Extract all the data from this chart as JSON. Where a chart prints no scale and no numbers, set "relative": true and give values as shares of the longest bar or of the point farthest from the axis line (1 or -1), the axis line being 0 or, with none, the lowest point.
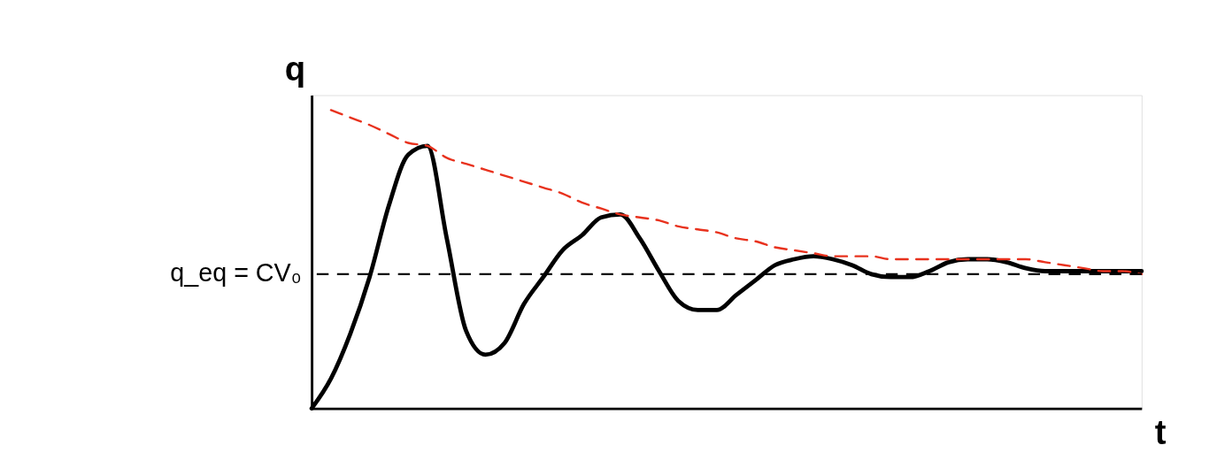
{
  "chart_data": {
    "type": "line",
    "relative": true,
    "xlabel": "t",
    "ylabel": "q",
    "grid": false,
    "categories": [
      null,
      null,
      null,
      null,
      null,
      null,
      null,
      null,
      null,
      null,
      null,
      null,
      null,
      null,
      null,
      null,
      null,
      null,
      null,
      null,
      null,
      null,
      null,
      null,
      null,
      null,
      null,
      null,
      null,
      null,
      null,
      null,
      null,
      null,
      null,
      null,
      null,
      null,
      null,
      null,
      null,
      null,
      null,
      null
    ],
    "series": [
      {
        "color": "#000000",
        "line_style": "solid",
        "values": [
          0,
          0.1,
          0.25,
          0.44,
          0.68,
          0.85,
          0.88,
          0.57,
          0.26,
          0.18,
          0.22,
          0.35,
          0.44,
          0.53,
          0.58,
          0.64,
          0.65,
          0.57,
          0.46,
          0.36,
          0.33,
          0.33,
          0.38,
          0.43,
          0.48,
          0.5,
          0.51,
          0.5,
          0.48,
          0.45,
          0.44,
          0.44,
          0.46,
          0.49,
          0.5,
          0.5,
          0.49,
          0.47,
          0.46,
          0.46,
          0.46,
          0.46,
          0.46,
          0.46
        ]
      },
      {
        "color": "#e8321e",
        "line_style": "dashed",
        "values": [
          null,
          1.0,
          0.975,
          0.95,
          0.92,
          0.89,
          0.88,
          0.84,
          0.82,
          0.8,
          0.78,
          0.76,
          0.74,
          0.72,
          0.69,
          0.67,
          0.65,
          0.64,
          0.63,
          0.61,
          0.6,
          0.59,
          0.57,
          0.56,
          0.54,
          0.53,
          0.52,
          0.51,
          0.51,
          0.51,
          0.5,
          0.5,
          0.5,
          0.5,
          0.5,
          0.5,
          0.5,
          0.5,
          0.49,
          0.48,
          0.47,
          0.46,
          0.46,
          0.45
        ]
      }
    ],
    "ref_lines": [
      {
        "axis": "y",
        "value": 0.45,
        "label": "q_eq = CV₀",
        "color": "#000000",
        "line_style": "dashed"
      }
    ]
  }
}
